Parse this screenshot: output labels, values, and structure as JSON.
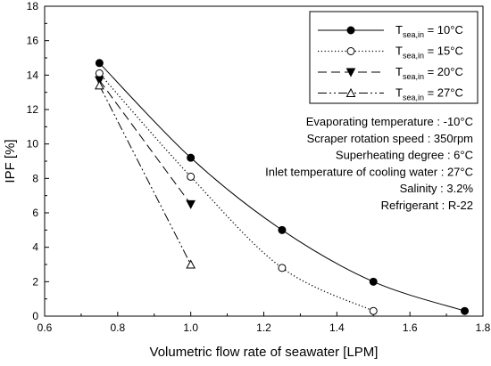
{
  "chart_data": {
    "type": "line",
    "title": "",
    "xlabel": "Volumetric flow rate of seawater [LPM]",
    "ylabel": "IPF [%]",
    "xlim": [
      0.6,
      1.8
    ],
    "ylim": [
      0,
      18
    ],
    "xticks": [
      0.6,
      0.8,
      1.0,
      1.2,
      1.4,
      1.6,
      1.8
    ],
    "xtick_labels": [
      "0.6",
      "0.8",
      "1.0",
      "1.2",
      "1.4",
      "1.6",
      "1.8"
    ],
    "yticks": [
      0,
      2,
      4,
      6,
      8,
      10,
      12,
      14,
      16,
      18
    ],
    "ytick_labels": [
      "0",
      "2",
      "4",
      "6",
      "8",
      "10",
      "12",
      "14",
      "16",
      "18"
    ],
    "grid": false,
    "legend_position": "top-right",
    "series": [
      {
        "name": "T_sea,in = 10°C",
        "legend_main": "T",
        "legend_sub": "sea,in",
        "legend_value": " = 10",
        "legend_unit": "°C",
        "line_style": "solid",
        "marker": "filled-circle",
        "x": [
          0.75,
          1.0,
          1.25,
          1.5,
          1.75
        ],
        "y": [
          14.7,
          9.2,
          5.0,
          2.0,
          0.3
        ]
      },
      {
        "name": "T_sea,in = 15°C",
        "legend_main": "T",
        "legend_sub": "sea,in",
        "legend_value": " = 15",
        "legend_unit": "°C",
        "line_style": "dotted",
        "marker": "open-circle",
        "x": [
          0.75,
          1.0,
          1.25,
          1.5
        ],
        "y": [
          14.1,
          8.1,
          2.8,
          0.3
        ]
      },
      {
        "name": "T_sea,in = 20°C",
        "legend_main": "T",
        "legend_sub": "sea,in",
        "legend_value": " = 20",
        "legend_unit": "°C",
        "line_style": "dashed",
        "marker": "filled-triangle-down",
        "x": [
          0.75,
          1.0
        ],
        "y": [
          13.7,
          6.5
        ]
      },
      {
        "name": "T_sea,in = 27°C",
        "legend_main": "T",
        "legend_sub": "sea,in",
        "legend_value": " = 27",
        "legend_unit": "°C",
        "line_style": "dash-dot-dot",
        "marker": "open-triangle-up",
        "x": [
          0.75,
          1.0
        ],
        "y": [
          13.4,
          3.0
        ]
      }
    ],
    "annotations": [
      "Evaporating temperature : -10°C",
      "Scraper rotation speed : 350rpm",
      "Superheating degree : 6°C",
      "Inlet temperature of cooling water : 27°C",
      "Salinity : 3.2%",
      "Refrigerant : R-22"
    ],
    "colors": {
      "line": "#000000",
      "background": "#ffffff"
    }
  }
}
